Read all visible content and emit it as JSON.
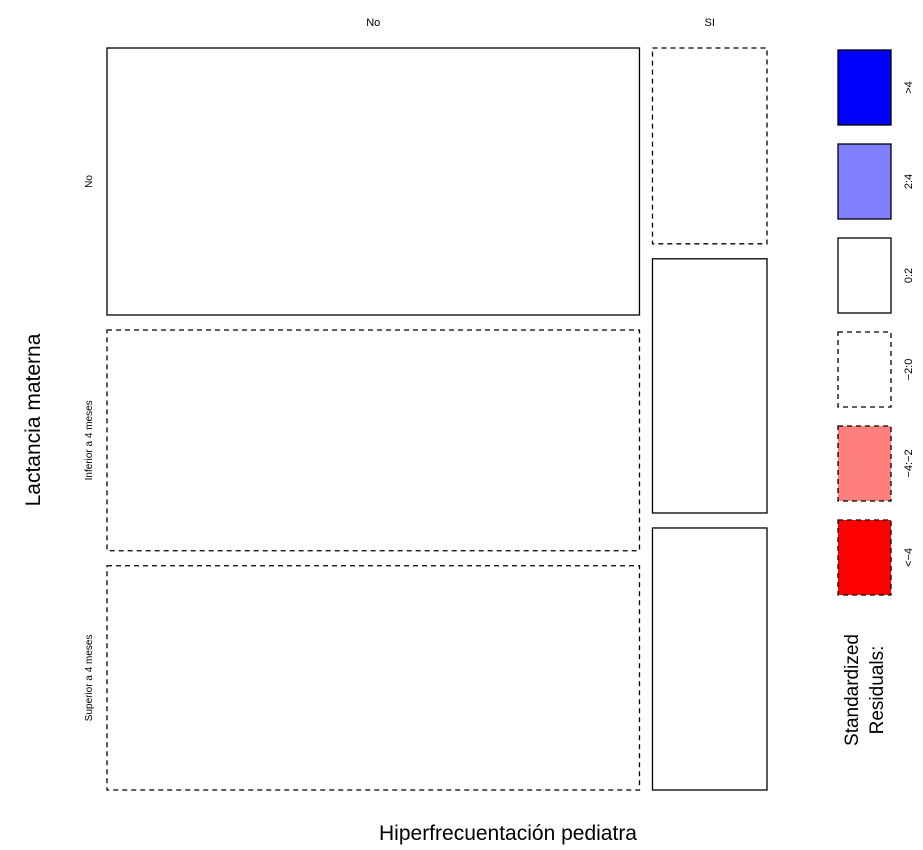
{
  "chart_data": {
    "type": "mosaic",
    "xlabel": "Hiperfrecuentación pediatra",
    "ylabel": "Lactancia materna",
    "x_categories": [
      "No",
      "SI"
    ],
    "y_categories": [
      "No",
      "Inferior a 4 meses",
      "Superior a 4 meses"
    ],
    "column_proportions": [
      0.823,
      0.177
    ],
    "cells": [
      {
        "x": "No",
        "y": "No",
        "proportion": 0.375,
        "residual_band": "0:2"
      },
      {
        "x": "No",
        "y": "Inferior a 4 meses",
        "proportion": 0.31,
        "residual_band": "-2:0"
      },
      {
        "x": "No",
        "y": "Superior a 4 meses",
        "proportion": 0.315,
        "residual_band": "-2:0"
      },
      {
        "x": "SI",
        "y": "No",
        "proportion": 0.275,
        "residual_band": "-2:0"
      },
      {
        "x": "SI",
        "y": "Inferior a 4 meses",
        "proportion": 0.357,
        "residual_band": "0:2"
      },
      {
        "x": "SI",
        "y": "Superior a 4 meses",
        "proportion": 0.368,
        "residual_band": "0:2"
      }
    ],
    "legend": {
      "title_lines": [
        "Standardized",
        "Residuals:"
      ],
      "placement": "right",
      "bands": [
        {
          "label": ">4",
          "color": "#0000ff",
          "dashed": false
        },
        {
          "label": "2:4",
          "color": "#7f7fff",
          "dashed": false
        },
        {
          "label": "0:2",
          "color": "#ffffff",
          "dashed": false
        },
        {
          "label": "−2:0",
          "color": "#ffffff",
          "dashed": true
        },
        {
          "label": "−4:−2",
          "color": "#ff7f7f",
          "dashed": true
        },
        {
          "label": "<−4",
          "color": "#ff0000",
          "dashed": true
        }
      ]
    }
  }
}
